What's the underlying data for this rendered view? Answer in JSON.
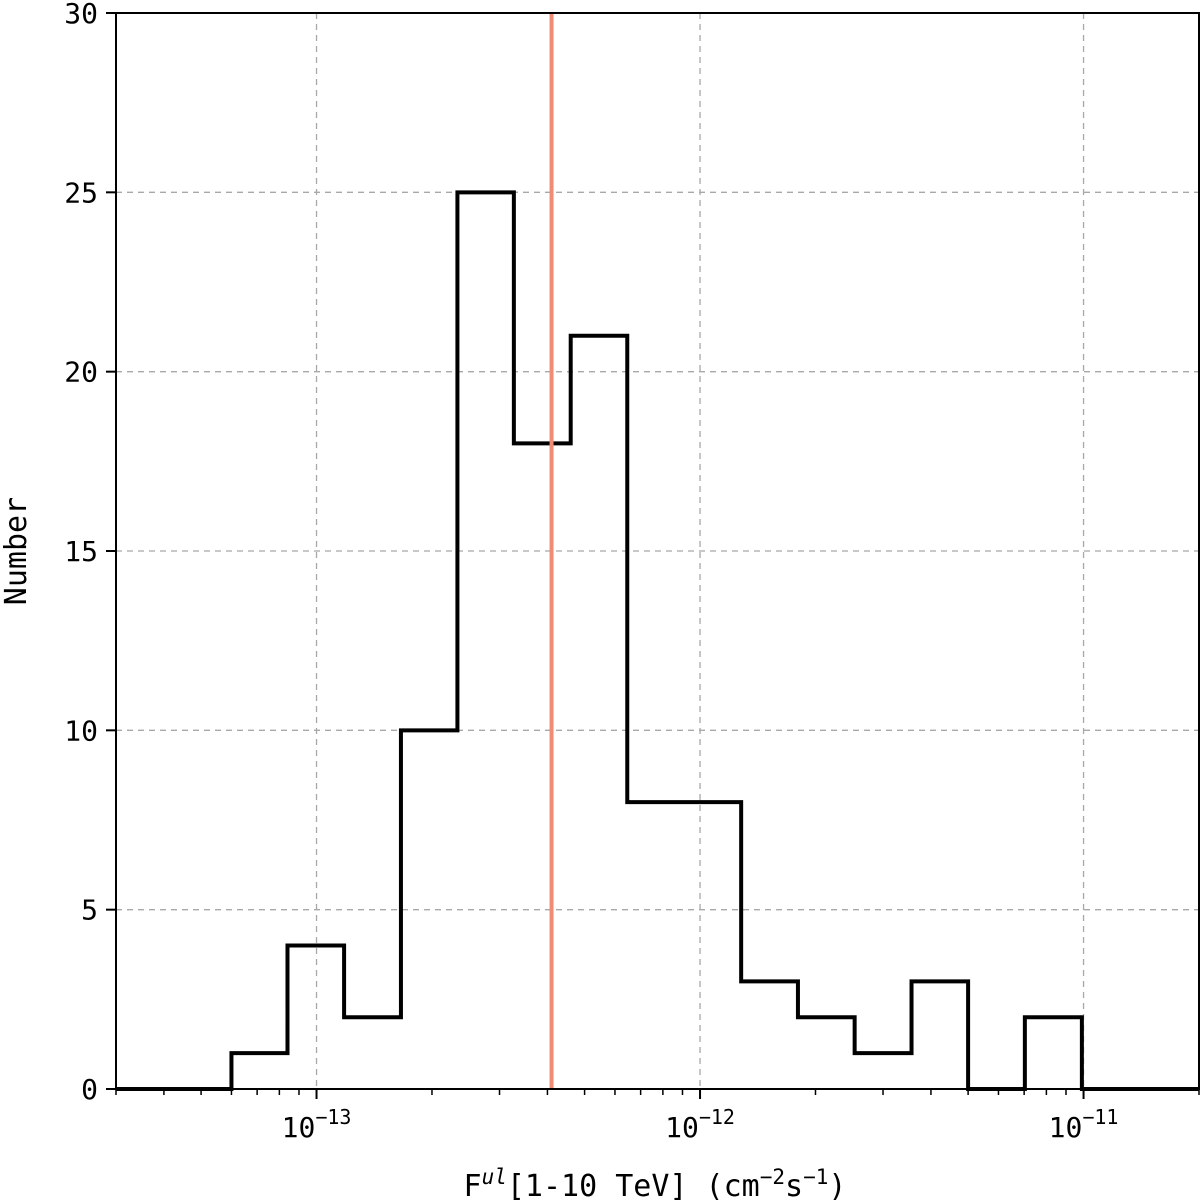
{
  "chart_data": {
    "type": "bar",
    "subtype": "step-histogram",
    "title": "",
    "xlabel": {
      "base": "F",
      "sup": "ul",
      "rest": "[1-10 TeV] (cm",
      "sup2": "−2",
      "mid": "s",
      "sup3": "−1",
      "end": ")"
    },
    "ylabel": "Number",
    "xscale": "log",
    "xlim": [
      3e-14,
      2e-11
    ],
    "ylim": [
      0,
      30
    ],
    "y_ticks": [
      0,
      5,
      10,
      15,
      20,
      25,
      30
    ],
    "x_major_ticks": [
      {
        "value": 1e-13,
        "base": "10",
        "exp": "−13"
      },
      {
        "value": 1e-12,
        "base": "10",
        "exp": "−12"
      },
      {
        "value": 1e-11,
        "base": "10",
        "exp": "−11"
      }
    ],
    "grid": true,
    "bin_edges": [
      6e-14,
      8.4e-14,
      1.18e-13,
      1.66e-13,
      2.33e-13,
      3.27e-13,
      4.6e-13,
      6.46e-13,
      9.1e-13,
      1.28e-12,
      1.8e-12,
      2.53e-12,
      3.56e-12,
      5e-12,
      7.03e-12,
      9.9e-12
    ],
    "counts": [
      1,
      4,
      2,
      10,
      25,
      18,
      21,
      8,
      8,
      3,
      2,
      1,
      3,
      0,
      2
    ],
    "reference_line": {
      "x": 4.1e-13,
      "color": "#f08c74"
    },
    "colors": {
      "histogram": "#000000",
      "grid": "#a8a8a8"
    }
  }
}
